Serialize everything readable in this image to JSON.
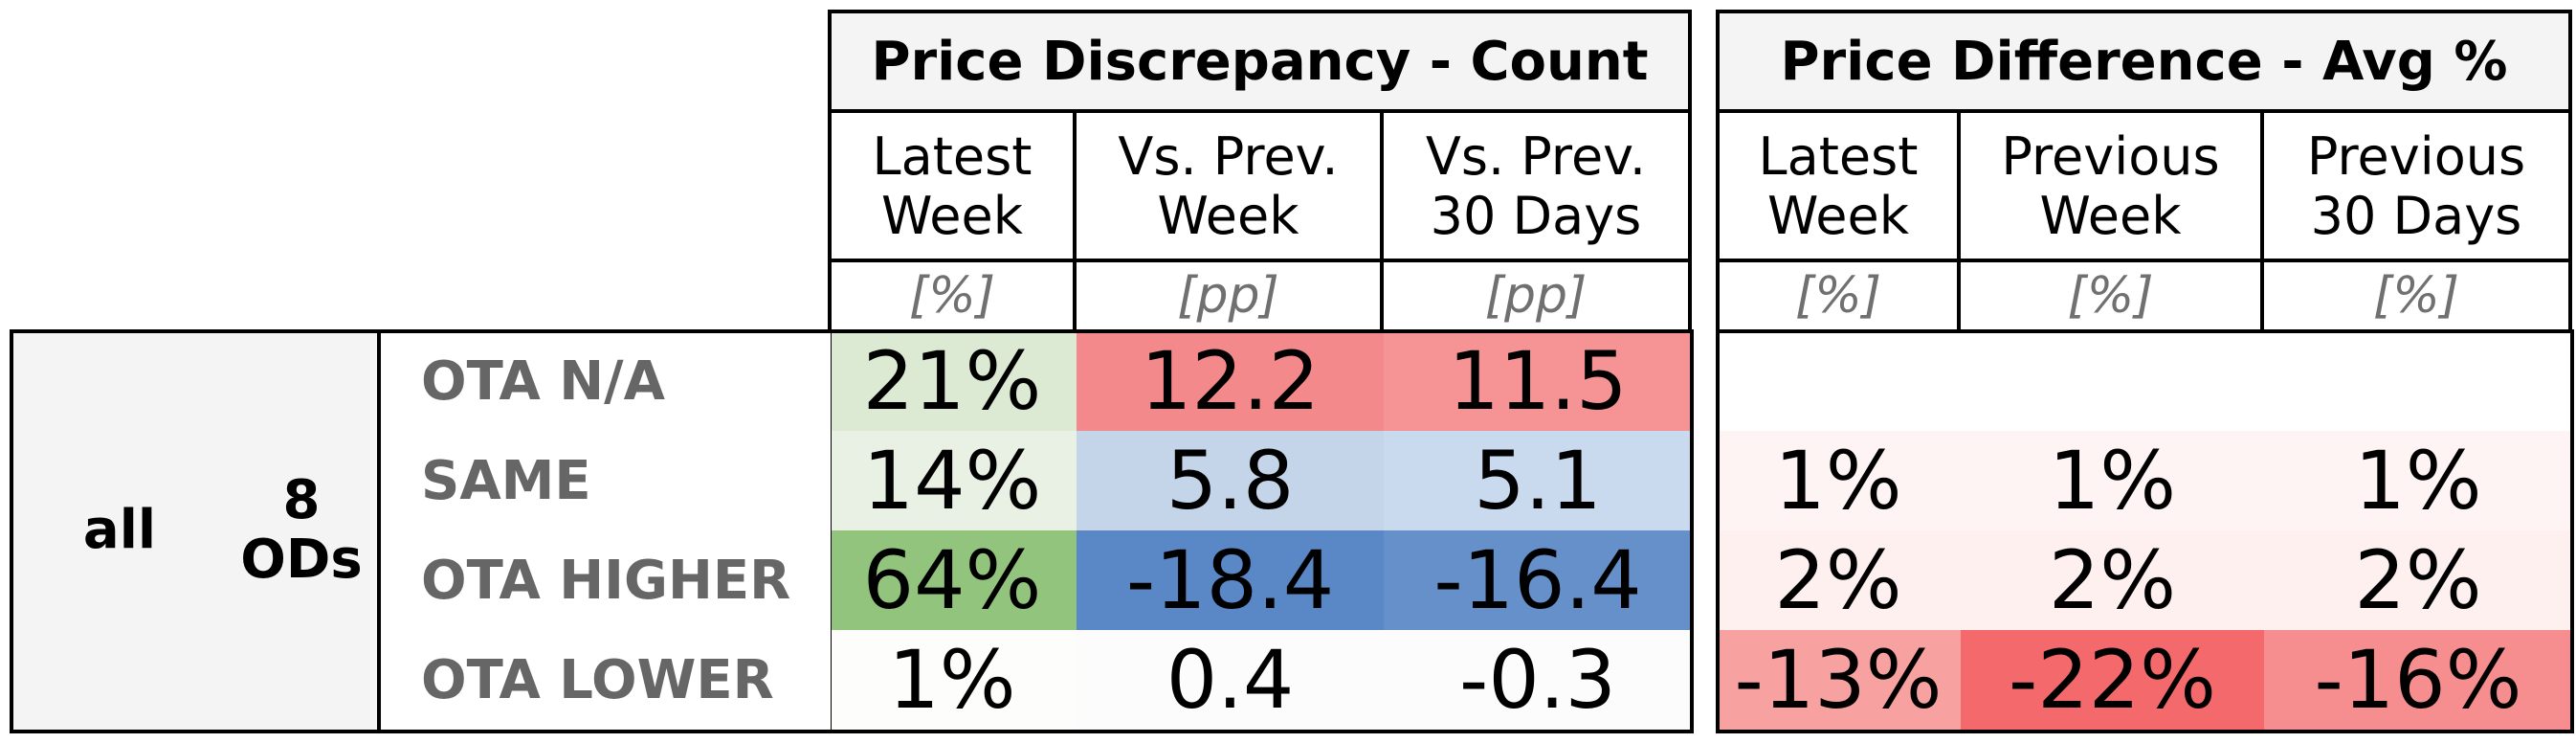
{
  "chart_data": {
    "type": "table",
    "group": {
      "label": "all",
      "sublabel": "8\nODs"
    },
    "rows": [
      "OTA N/A",
      "SAME",
      "OTA HIGHER",
      "OTA LOWER"
    ],
    "left_table": {
      "title": "Price Discrepancy - Count",
      "columns": [
        {
          "label": "Latest\nWeek",
          "unit": "[%]"
        },
        {
          "label": "Vs. Prev.\nWeek",
          "unit": "[pp]"
        },
        {
          "label": "Vs. Prev.\n30 Days",
          "unit": "[pp]"
        }
      ],
      "cells": [
        [
          {
            "text": "21%",
            "color": "#dcead4"
          },
          {
            "text": "12.2",
            "color": "#f4898b"
          },
          {
            "text": "11.5",
            "color": "#f69495"
          }
        ],
        [
          {
            "text": "14%",
            "color": "#e9f1e4"
          },
          {
            "text": "5.8",
            "color": "#c4d5ea"
          },
          {
            "text": "5.1",
            "color": "#cadaee"
          }
        ],
        [
          {
            "text": "64%",
            "color": "#93c47d"
          },
          {
            "text": "-18.4",
            "color": "#5a87c5"
          },
          {
            "text": "-16.4",
            "color": "#6690ca"
          }
        ],
        [
          {
            "text": "1%",
            "color": "#fdfdfc"
          },
          {
            "text": "0.4",
            "color": "#fcfcfc"
          },
          {
            "text": "-0.3",
            "color": "#fcfcfc"
          }
        ]
      ]
    },
    "right_table": {
      "title": "Price Difference - Avg %",
      "columns": [
        {
          "label": "Latest\nWeek",
          "unit": "[%]"
        },
        {
          "label": "Previous\nWeek",
          "unit": "[%]"
        },
        {
          "label": "Previous\n30 Days",
          "unit": "[%]"
        }
      ],
      "cells": [
        [
          {
            "text": "",
            "color": "#ffffff"
          },
          {
            "text": "",
            "color": "#ffffff"
          },
          {
            "text": "",
            "color": "#ffffff"
          }
        ],
        [
          {
            "text": "1%",
            "color": "#fff4f4"
          },
          {
            "text": "1%",
            "color": "#fff4f4"
          },
          {
            "text": "1%",
            "color": "#fff4f4"
          }
        ],
        [
          {
            "text": "2%",
            "color": "#fff0f0"
          },
          {
            "text": "2%",
            "color": "#fff0f0"
          },
          {
            "text": "2%",
            "color": "#fff0f0"
          }
        ],
        [
          {
            "text": "-13%",
            "color": "#f7a1a1"
          },
          {
            "text": "-22%",
            "color": "#f46a6c"
          },
          {
            "text": "-16%",
            "color": "#f68e8f"
          }
        ]
      ]
    }
  }
}
